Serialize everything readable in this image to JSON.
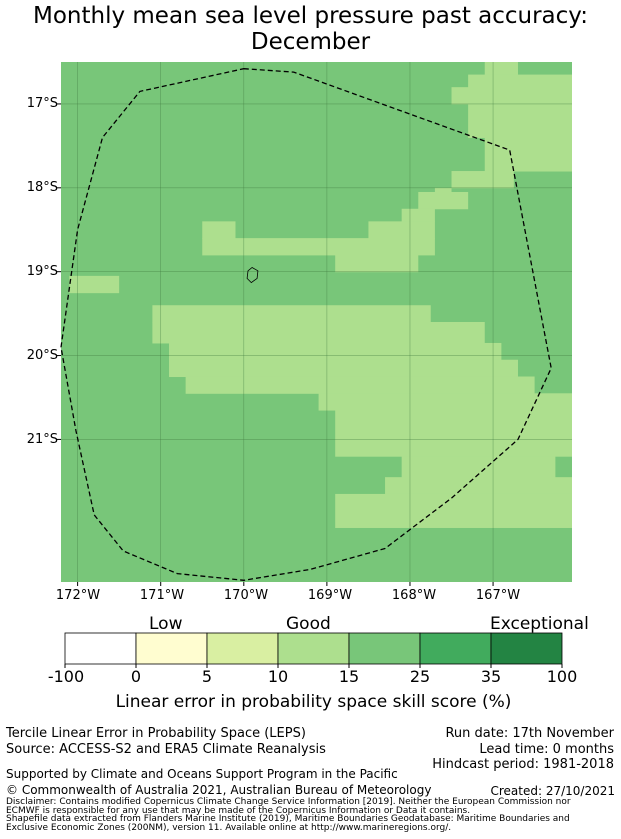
{
  "title": {
    "line1": "Monthly mean sea level pressure past accuracy:",
    "line2": "December"
  },
  "map": {
    "lat_labels": [
      "17°S",
      "18°S",
      "19°S",
      "20°S",
      "21°S"
    ],
    "lon_labels": [
      "172°W",
      "171°W",
      "170°W",
      "169°W",
      "168°W",
      "167°W"
    ],
    "lon_range": [
      -172.2,
      -166.05
    ],
    "lat_range": [
      -16.5,
      -22.7
    ],
    "cell_size_deg": 0.2,
    "lon_ticks": [
      -172,
      -171,
      -170,
      -169,
      -168,
      -167
    ],
    "lat_ticks": [
      -17,
      -18,
      -19,
      -20,
      -21
    ],
    "eez_boundary_lonlat": [
      [
        -170.0,
        -16.58
      ],
      [
        -169.4,
        -16.62
      ],
      [
        -166.8,
        -17.55
      ],
      [
        -166.3,
        -20.15
      ],
      [
        -166.7,
        -21.0
      ],
      [
        -167.5,
        -21.7
      ],
      [
        -168.3,
        -22.3
      ],
      [
        -169.2,
        -22.55
      ],
      [
        -170.0,
        -22.68
      ],
      [
        -170.8,
        -22.6
      ],
      [
        -171.45,
        -22.33
      ],
      [
        -171.8,
        -21.9
      ],
      [
        -172.02,
        -20.9
      ],
      [
        -172.2,
        -19.9
      ],
      [
        -172.0,
        -18.5
      ],
      [
        -171.7,
        -17.4
      ],
      [
        -171.25,
        -16.85
      ]
    ],
    "island_lonlat": [
      [
        -169.9,
        -18.95
      ],
      [
        -169.83,
        -18.99
      ],
      [
        -169.84,
        -19.08
      ],
      [
        -169.91,
        -19.13
      ],
      [
        -169.96,
        -19.08
      ],
      [
        -169.95,
        -18.99
      ]
    ],
    "skill_regions": {
      "base_category": "15-25",
      "note": "rectangles in lon/lat with category 10-15 unless stated",
      "regions": [
        {
          "lon": [
            -167.1,
            -166.7
          ],
          "lat": [
            -16.5,
            -16.65
          ],
          "cat": "10-15"
        },
        {
          "lon": [
            -167.3,
            -166.05
          ],
          "lat": [
            -16.65,
            -16.8
          ],
          "cat": "10-15"
        },
        {
          "lon": [
            -167.5,
            -166.05
          ],
          "lat": [
            -16.8,
            -17.0
          ],
          "cat": "10-15"
        },
        {
          "lon": [
            -167.3,
            -166.05
          ],
          "lat": [
            -17.0,
            -17.4
          ],
          "cat": "10-15"
        },
        {
          "lon": [
            -167.1,
            -166.05
          ],
          "lat": [
            -17.4,
            -17.8
          ],
          "cat": "10-15"
        },
        {
          "lon": [
            -167.5,
            -166.75
          ],
          "lat": [
            -17.8,
            -18.0
          ],
          "cat": "10-15"
        },
        {
          "lon": [
            -167.7,
            -167.5
          ],
          "lat": [
            -18.0,
            -18.2
          ],
          "cat": "10-15"
        },
        {
          "lon": [
            -167.9,
            -167.3
          ],
          "lat": [
            -18.05,
            -18.25
          ],
          "cat": "10-15"
        },
        {
          "lon": [
            -168.1,
            -167.7
          ],
          "lat": [
            -18.25,
            -18.4
          ],
          "cat": "10-15"
        },
        {
          "lon": [
            -168.5,
            -167.7
          ],
          "lat": [
            -18.4,
            -18.6
          ],
          "cat": "10-15"
        },
        {
          "lon": [
            -170.5,
            -167.7
          ],
          "lat": [
            -18.6,
            -18.8
          ],
          "cat": "10-15"
        },
        {
          "lon": [
            -170.5,
            -170.1
          ],
          "lat": [
            -18.4,
            -18.6
          ],
          "cat": "10-15"
        },
        {
          "lon": [
            -168.9,
            -167.9
          ],
          "lat": [
            -18.8,
            -19.0
          ],
          "cat": "10-15"
        },
        {
          "lon": [
            -172.1,
            -171.5
          ],
          "lat": [
            -19.05,
            -19.25
          ],
          "cat": "10-15"
        },
        {
          "lon": [
            -171.1,
            -167.75
          ],
          "lat": [
            -19.4,
            -19.6
          ],
          "cat": "10-15"
        },
        {
          "lon": [
            -171.1,
            -167.1
          ],
          "lat": [
            -19.6,
            -19.85
          ],
          "cat": "10-15"
        },
        {
          "lon": [
            -170.9,
            -166.9
          ],
          "lat": [
            -19.85,
            -20.05
          ],
          "cat": "10-15"
        },
        {
          "lon": [
            -170.9,
            -166.7
          ],
          "lat": [
            -20.05,
            -20.25
          ],
          "cat": "10-15"
        },
        {
          "lon": [
            -170.7,
            -166.5
          ],
          "lat": [
            -20.25,
            -20.45
          ],
          "cat": "10-15"
        },
        {
          "lon": [
            -169.1,
            -166.05
          ],
          "lat": [
            -20.45,
            -20.65
          ],
          "cat": "10-15"
        },
        {
          "lon": [
            -168.9,
            -166.05
          ],
          "lat": [
            -20.65,
            -21.2
          ],
          "cat": "10-15"
        },
        {
          "lon": [
            -168.1,
            -166.25
          ],
          "lat": [
            -21.2,
            -21.45
          ],
          "cat": "10-15"
        },
        {
          "lon": [
            -168.3,
            -166.05
          ],
          "lat": [
            -21.45,
            -21.65
          ],
          "cat": "10-15"
        },
        {
          "lon": [
            -168.9,
            -166.05
          ],
          "lat": [
            -21.65,
            -22.05
          ],
          "cat": "10-15"
        }
      ]
    }
  },
  "colorbar": {
    "category_labels": [
      "Low",
      "Good",
      "Exceptional"
    ],
    "ticks": [
      "-100",
      "0",
      "5",
      "10",
      "15",
      "25",
      "35",
      "100"
    ],
    "colors": [
      "#ffffff",
      "#fffdd0",
      "#d9efa2",
      "#addf8e",
      "#78c679",
      "#41ab5d",
      "#238443"
    ],
    "title": "Linear error in probability space skill score (%)"
  },
  "info": {
    "left_line1": "Tercile Linear Error in Probability Space (LEPS)",
    "left_line2": "Source: ACCESS-S2 and ERA5 Climate Reanalysis",
    "right_line1": "Run date: 17th November",
    "right_line2": "Lead time: 0 months",
    "right_line3": "Hindcast period: 1981-2018",
    "supported": "Supported by Climate and Oceans Support Program in the Pacific",
    "copyright": "© Commonwealth of Australia 2021, Australian Bureau of Meteorology",
    "created": "Created: 27/10/2021",
    "disclaimer1": "Disclaimer: Contains modified Copernicus Climate Change Service Information [2019]. Neither the European Commission nor",
    "disclaimer2": "ECMWF is responsible for any use that may be made of the Copernicus Information or Data it contains.",
    "shapefile1": "Shapefile data extracted from Flanders Marine Institute (2019), Maritime Boundaries Geodatabase: Maritime Boundaries and",
    "shapefile2": "Exclusive Economic Zones (200NM), version 11. Available online at http://www.marineregions.org/."
  }
}
